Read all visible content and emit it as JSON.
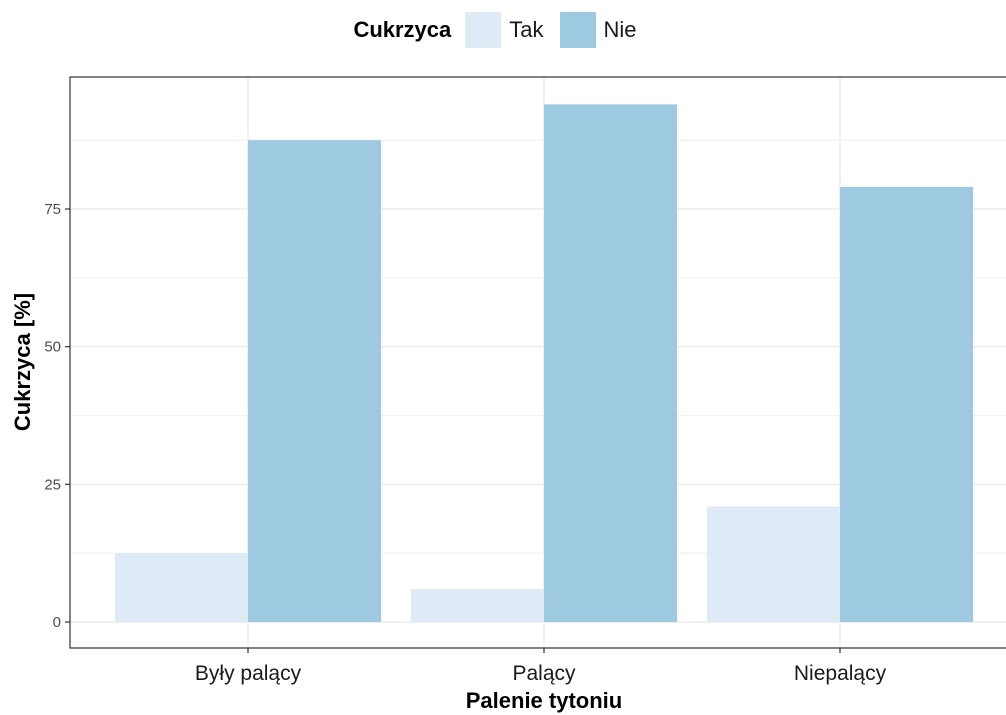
{
  "chart_data": {
    "type": "bar",
    "title": "",
    "xlabel": "Palenie tytoniu",
    "ylabel": "Cukrzyca [%]",
    "categories": [
      "Były palący",
      "Palący",
      "Niepalący"
    ],
    "series": [
      {
        "name": "Tak",
        "color": "#deebf7",
        "values": [
          12.5,
          6.0,
          21.0
        ]
      },
      {
        "name": "Nie",
        "color": "#9ecae1",
        "values": [
          87.5,
          94.0,
          79.0
        ]
      }
    ],
    "ylim": [
      -4.7,
      99.0
    ],
    "yticks": [
      0,
      25,
      50,
      75
    ],
    "grid": true,
    "legend": {
      "title": "Cukrzyca",
      "position": "top"
    }
  }
}
